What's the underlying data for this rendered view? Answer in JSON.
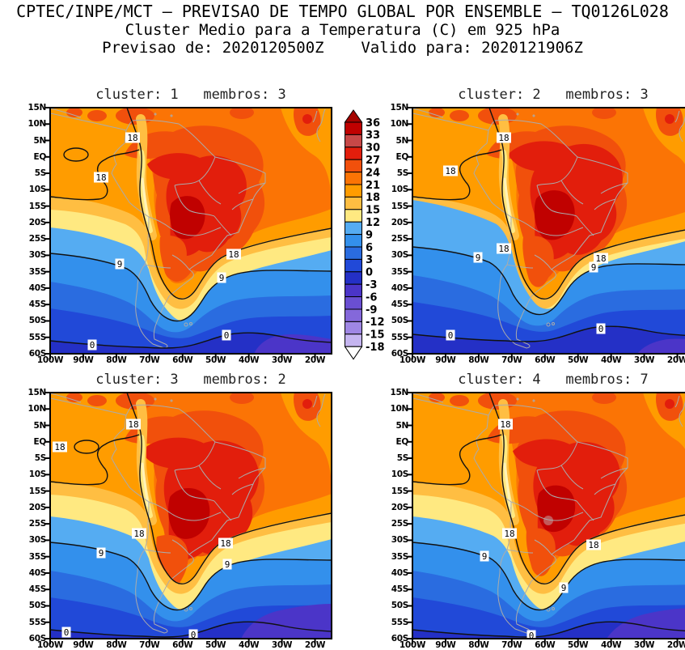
{
  "header": {
    "line1": "CPTEC/INPE/MCT – PREVISAO DE TEMPO GLOBAL POR ENSEMBLE – TQ0126L028",
    "line2": "Cluster Medio para a Temperatura (C) em 925 hPa",
    "line3": "Previsao de: 2020120500Z    Valido para: 2020121906Z"
  },
  "chart_data": {
    "type": "heatmap",
    "variable": "Temperatura (C) em 925 hPa",
    "model": "TQ0126L028",
    "init_time": "2020120500Z",
    "valid_time": "2020121906Z",
    "contour_interval": 3,
    "labeled_contours": [
      0,
      9,
      18
    ],
    "x_ticks": [
      "100W",
      "90W",
      "80W",
      "70W",
      "60W",
      "50W",
      "40W",
      "30W",
      "20W"
    ],
    "y_ticks": [
      "15N",
      "10N",
      "5N",
      "EQ",
      "5S",
      "10S",
      "15S",
      "20S",
      "25S",
      "30S",
      "35S",
      "40S",
      "45S",
      "50S",
      "55S",
      "60S"
    ],
    "x_range_deg": [
      -100,
      -15
    ],
    "y_range_deg": [
      15,
      -60
    ],
    "panels": [
      {
        "title": "cluster: 1   membros: 3",
        "cluster": 1,
        "membros": 3,
        "contour_labels": [
          {
            "v": "18",
            "x": 102,
            "y": 37
          },
          {
            "v": "18",
            "x": 63,
            "y": 86
          },
          {
            "v": "18",
            "x": 227,
            "y": 181
          },
          {
            "v": "9",
            "x": 86,
            "y": 193
          },
          {
            "v": "9",
            "x": 212,
            "y": 210
          },
          {
            "v": "0",
            "x": 52,
            "y": 293
          },
          {
            "v": "0",
            "x": 218,
            "y": 281
          }
        ]
      },
      {
        "title": "cluster: 2   membros: 3",
        "cluster": 2,
        "membros": 3,
        "contour_labels": [
          {
            "v": "18",
            "x": 113,
            "y": 37
          },
          {
            "v": "18",
            "x": 47,
            "y": 78
          },
          {
            "v": "18",
            "x": 113,
            "y": 174
          },
          {
            "v": "18",
            "x": 233,
            "y": 186
          },
          {
            "v": "9",
            "x": 81,
            "y": 185
          },
          {
            "v": "9",
            "x": 224,
            "y": 197
          },
          {
            "v": "0",
            "x": 47,
            "y": 281
          },
          {
            "v": "0",
            "x": 233,
            "y": 273
          }
        ]
      },
      {
        "title": "cluster: 3   membros: 2",
        "cluster": 3,
        "membros": 2,
        "contour_labels": [
          {
            "v": "18",
            "x": 103,
            "y": 39
          },
          {
            "v": "18",
            "x": 12,
            "y": 67
          },
          {
            "v": "18",
            "x": 110,
            "y": 174
          },
          {
            "v": "18",
            "x": 217,
            "y": 186
          },
          {
            "v": "9",
            "x": 63,
            "y": 198
          },
          {
            "v": "9",
            "x": 219,
            "y": 212
          },
          {
            "v": "0",
            "x": 20,
            "y": 296
          },
          {
            "v": "0",
            "x": 177,
            "y": 299
          }
        ]
      },
      {
        "title": "cluster: 4   membros: 7",
        "cluster": 4,
        "membros": 7,
        "contour_labels": [
          {
            "v": "18",
            "x": 115,
            "y": 39
          },
          {
            "v": "18",
            "x": 120,
            "y": 174
          },
          {
            "v": "18",
            "x": 224,
            "y": 188
          },
          {
            "v": "9",
            "x": 89,
            "y": 202
          },
          {
            "v": "9",
            "x": 187,
            "y": 241
          },
          {
            "v": "0",
            "x": 147,
            "y": 300
          }
        ]
      }
    ],
    "colorbar": {
      "labels": [
        "36",
        "33",
        "30",
        "27",
        "24",
        "21",
        "18",
        "15",
        "12",
        "9",
        "6",
        "3",
        "0",
        "-3",
        "-6",
        "-9",
        "-12",
        "-15",
        "-18"
      ],
      "box_colors": [
        "#C00100",
        "#C74847",
        "#E21E0C",
        "#F1500C",
        "#FB7405",
        "#FF9C00",
        "#FFBE42",
        "#FFE981",
        "#55ACF2",
        "#3390EC",
        "#2A6CE0",
        "#2149D8",
        "#2430C6",
        "#4B35C8",
        "#6A4FD2",
        "#8468DA",
        "#9F87E4",
        "#C5B5F0"
      ],
      "arrow_top_color": "#A50400",
      "arrow_bottom_color": "#FFFFFF"
    },
    "extra_colors": {
      "andes_pale": "#FFF3B8",
      "hot_spot": "#C25A5A",
      "coastline": "#ABABAB",
      "contour_line": "#111111"
    }
  }
}
